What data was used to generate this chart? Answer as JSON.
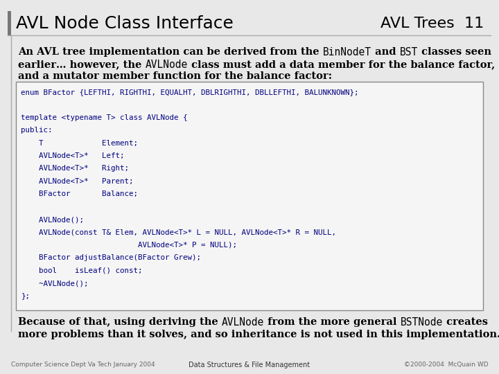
{
  "bg_color": "#e8e8e8",
  "slide_bg": "#ffffff",
  "title_text": "AVL Node Class Interface",
  "title_right": "AVL Trees  11",
  "header_line_color": "#999999",
  "intro_lines": [
    [
      [
        "An AVL tree implementation can be derived from the ",
        false
      ],
      [
        "BinNodeT",
        true
      ],
      [
        " and ",
        false
      ],
      [
        "BST",
        true
      ],
      [
        " classes seen",
        false
      ]
    ],
    [
      [
        "earlier… however, the ",
        false
      ],
      [
        "AVLNode",
        true
      ],
      [
        " class must add a data member for the balance factor,",
        false
      ]
    ],
    [
      [
        "and a mutator member function for the balance factor:",
        false
      ]
    ]
  ],
  "code_lines": [
    "enum BFactor {LEFTHI, RIGHTHI, EQUALHT, DBLRIGHTHI, DBLLEFTHI, BALUNKNOWN};",
    "",
    "template <typename T> class AVLNode {",
    "public:",
    "    T             Element;",
    "    AVLNode<T>*   Left;",
    "    AVLNode<T>*   Right;",
    "    AVLNode<T>*   Parent;",
    "    BFactor       Balance;",
    "",
    "    AVLNode();",
    "    AVLNode(const T& Elem, AVLNode<T>* L = NULL, AVLNode<T>* R = NULL,",
    "                          AVLNode<T>* P = NULL);",
    "    BFactor adjustBalance(BFactor Grew);",
    "    bool    isLeaf() const;",
    "    ~AVLNode();",
    "};"
  ],
  "bottom_lines": [
    [
      [
        "Because of that, using deriving the ",
        false
      ],
      [
        "AVLNode",
        true
      ],
      [
        " from the more general ",
        false
      ],
      [
        "BSTNode",
        true
      ],
      [
        " creates",
        false
      ]
    ],
    [
      [
        "more problems than it solves, and so inheritance is not used in this implementation.",
        false
      ]
    ]
  ],
  "footer_left": "Computer Science Dept Va Tech January 2004",
  "footer_center": "Data Structures & File Management",
  "footer_right": "©2000-2004  McQuain WD",
  "code_color": "#000080",
  "text_color": "#000000"
}
